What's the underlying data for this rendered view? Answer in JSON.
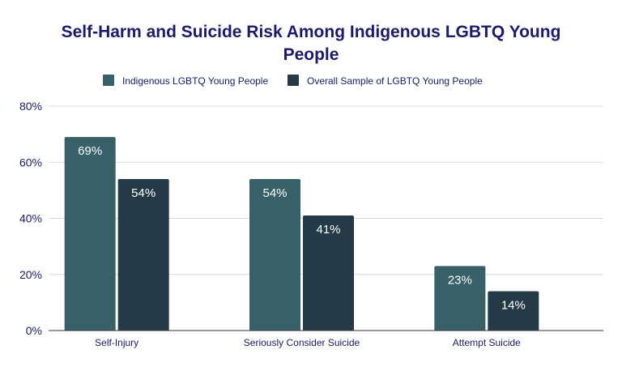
{
  "chart_data": {
    "type": "bar",
    "title": "Self-Harm and Suicide Risk Among Indigenous LGBTQ Young People",
    "title_lines": [
      "Self-Harm and Suicide Risk Among Indigenous LGBTQ Young",
      "People"
    ],
    "categories": [
      "Self-Injury",
      "Seriously Consider Suicide",
      "Attempt Suicide"
    ],
    "series": [
      {
        "name": "Indigenous LGBTQ Young People",
        "values": [
          69,
          54,
          23
        ],
        "labels": [
          "69%",
          "54%",
          "23%"
        ],
        "color": "#376068"
      },
      {
        "name": "Overall Sample of LGBTQ Young People",
        "values": [
          54,
          41,
          14
        ],
        "labels": [
          "54%",
          "41%",
          "14%"
        ],
        "color": "#243a47"
      }
    ],
    "yticks": [
      "0%",
      "20%",
      "40%",
      "60%",
      "80%"
    ],
    "ytick_values": [
      0,
      20,
      40,
      60,
      80
    ],
    "ylim": [
      0,
      80
    ],
    "xlabel": "",
    "ylabel": "",
    "grid": true,
    "legend_position": "top"
  }
}
